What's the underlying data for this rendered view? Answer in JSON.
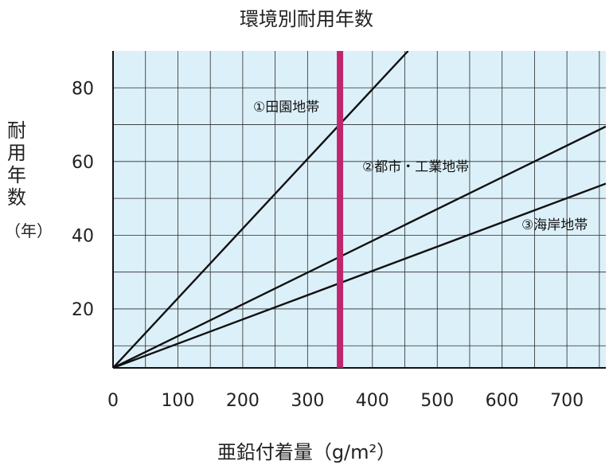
{
  "chart_data": {
    "type": "line",
    "title": "環境別耐用年数",
    "xlabel": "亜鉛付着量（g/m²）",
    "ylabel": [
      "耐",
      "用",
      "年",
      "数",
      "（年）"
    ],
    "xlim": [
      0,
      760
    ],
    "ylim": [
      4,
      90
    ],
    "x_ticks": [
      0,
      100,
      200,
      300,
      400,
      500,
      600,
      700
    ],
    "y_ticks": [
      20,
      40,
      60,
      80
    ],
    "grid": true,
    "background_color": "#dcf0f9",
    "marker_line": {
      "x": 350,
      "color": "#c0266e"
    },
    "series": [
      {
        "name": "①田園地帯",
        "x": [
          0,
          455
        ],
        "y": [
          4,
          90
        ]
      },
      {
        "name": "②都市・工業地帯",
        "x": [
          0,
          760
        ],
        "y": [
          4,
          69.5
        ]
      },
      {
        "name": "③海岸地帯",
        "x": [
          0,
          760
        ],
        "y": [
          4,
          54
        ]
      }
    ]
  }
}
